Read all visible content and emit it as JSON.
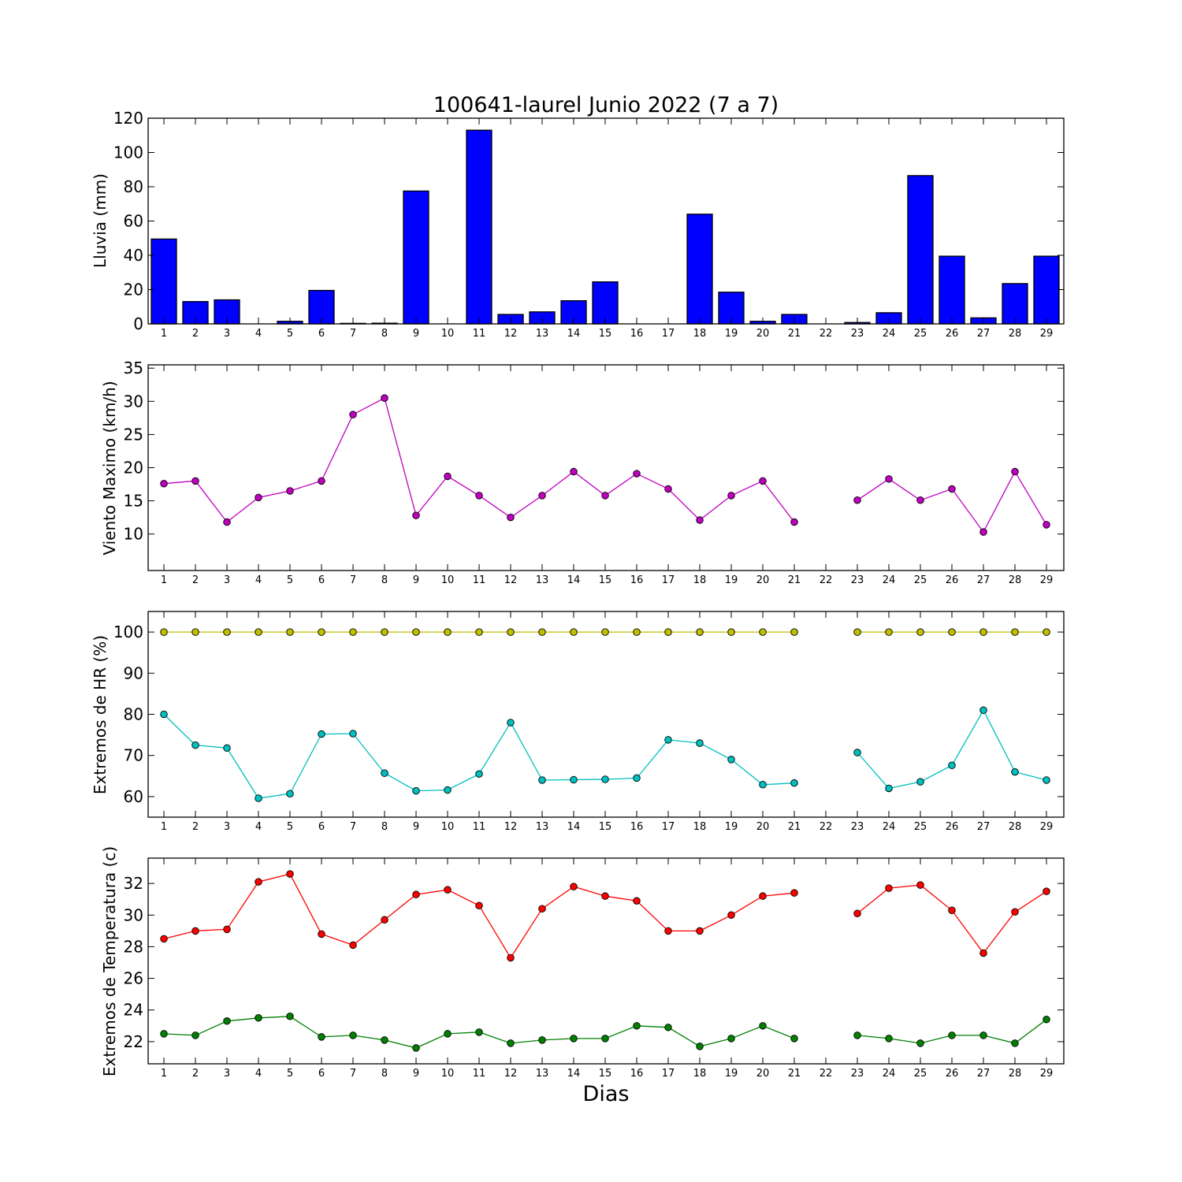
{
  "title": "100641-laurel Junio 2022  (7 a 7)",
  "xlabel": "Dias",
  "days": [
    "1",
    "2",
    "3",
    "4",
    "5",
    "6",
    "7",
    "8",
    "9",
    "10",
    "11",
    "12",
    "13",
    "14",
    "15",
    "16",
    "17",
    "18",
    "19",
    "20",
    "21",
    "22",
    "23",
    "24",
    "25",
    "26",
    "27",
    "28",
    "29"
  ],
  "chart_data": [
    {
      "type": "bar",
      "ylabel": "Lluvia (mm)",
      "ylim": [
        0,
        120
      ],
      "yticks": [
        0,
        20,
        40,
        60,
        80,
        100,
        120
      ],
      "grid": false,
      "series": [
        {
          "color": "#0000ff",
          "values": [
            49.5,
            13,
            14,
            0,
            1.5,
            19.5,
            0.3,
            0.4,
            77.5,
            0,
            113,
            5.5,
            7,
            13.5,
            24.5,
            0,
            0,
            64,
            18.5,
            1.5,
            5.5,
            null,
            0.8,
            6.5,
            86.5,
            39.5,
            3.5,
            23.5,
            39.5
          ]
        }
      ]
    },
    {
      "type": "line",
      "ylabel": "Viento Maximo (km/h)",
      "ylim": [
        4.5,
        35.5
      ],
      "yticks": [
        10,
        15,
        20,
        25,
        30,
        35
      ],
      "grid": false,
      "series": [
        {
          "color": "#bf00bf",
          "values": [
            17.6,
            18,
            11.8,
            15.5,
            16.5,
            18,
            28,
            30.5,
            12.8,
            18.7,
            15.8,
            12.5,
            15.8,
            19.4,
            15.8,
            19.1,
            16.8,
            12.1,
            15.8,
            18,
            11.8,
            null,
            15.1,
            18.3,
            15.1,
            16.8,
            10.3,
            19.4,
            11.4
          ]
        }
      ]
    },
    {
      "type": "line",
      "ylabel": "Extremos de HR (%)",
      "ylim": [
        55,
        105
      ],
      "yticks": [
        60,
        70,
        80,
        90,
        100
      ],
      "grid": false,
      "series": [
        {
          "color": "#bfbf00",
          "values": [
            100,
            100,
            100,
            100,
            100,
            100,
            100,
            100,
            100,
            100,
            100,
            100,
            100,
            100,
            100,
            100,
            100,
            100,
            100,
            100,
            100,
            null,
            100,
            100,
            100,
            100,
            100,
            100,
            100
          ]
        },
        {
          "color": "#00bfbf",
          "values": [
            80,
            72.5,
            71.8,
            59.6,
            60.7,
            75.2,
            75.3,
            65.7,
            61.4,
            61.6,
            65.5,
            78,
            64,
            64.1,
            64.2,
            64.5,
            73.8,
            73,
            69,
            62.9,
            63.3,
            null,
            70.7,
            62,
            63.6,
            67.6,
            81,
            66,
            64
          ]
        }
      ]
    },
    {
      "type": "line",
      "ylabel": "Extremos de Temperatura (c)",
      "ylim": [
        20.6,
        33.6
      ],
      "yticks": [
        22,
        24,
        26,
        28,
        30,
        32
      ],
      "grid": false,
      "series": [
        {
          "color": "#ff0000",
          "values": [
            28.5,
            29,
            29.1,
            32.1,
            32.6,
            28.8,
            28.1,
            29.7,
            31.3,
            31.6,
            30.6,
            27.3,
            30.4,
            31.8,
            31.2,
            30.9,
            29,
            29,
            30,
            31.2,
            31.4,
            null,
            30.1,
            31.7,
            31.9,
            30.3,
            27.6,
            30.2,
            31.5
          ]
        },
        {
          "color": "#008000",
          "values": [
            22.5,
            22.4,
            23.3,
            23.5,
            23.6,
            22.3,
            22.4,
            22.1,
            21.6,
            22.5,
            22.6,
            21.9,
            22.1,
            22.2,
            22.2,
            23,
            22.9,
            21.7,
            22.2,
            23,
            22.2,
            null,
            22.4,
            22.2,
            21.9,
            22.4,
            22.4,
            21.9,
            23.4
          ]
        }
      ]
    }
  ]
}
